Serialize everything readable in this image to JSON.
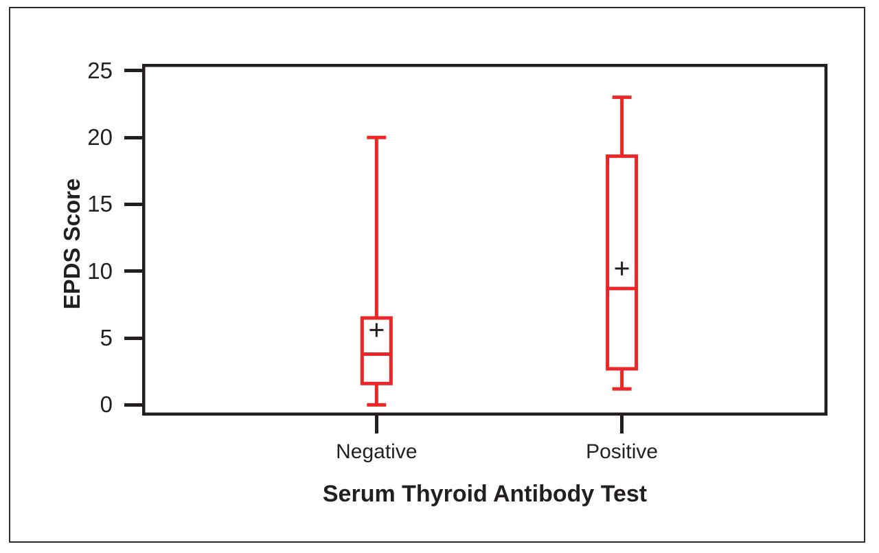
{
  "figure": {
    "x_axis_title": "Serum Thyroid Antibody Test",
    "y_axis_title": "EPDS Score"
  },
  "chart_data": {
    "type": "boxplot",
    "title": "",
    "xlabel": "Serum Thyroid Antibody Test",
    "ylabel": "EPDS Score",
    "categories": [
      "Negative",
      "Positive"
    ],
    "y_ticks": [
      25,
      20,
      15,
      10,
      5,
      0
    ],
    "ylim": [
      -0.8,
      25.5
    ],
    "grid": false,
    "legend": false,
    "box_color": "#EC2626",
    "mean_marker": "+",
    "mean_marker_color": "#231f20",
    "series": [
      {
        "category": "Negative",
        "min": 0,
        "q1": 1.6,
        "median": 3.8,
        "q3": 6.5,
        "max": 20,
        "mean": 5.6
      },
      {
        "category": "Positive",
        "min": 1.2,
        "q1": 2.7,
        "median": 8.7,
        "q3": 18.6,
        "max": 23,
        "mean": 10.2
      }
    ]
  }
}
